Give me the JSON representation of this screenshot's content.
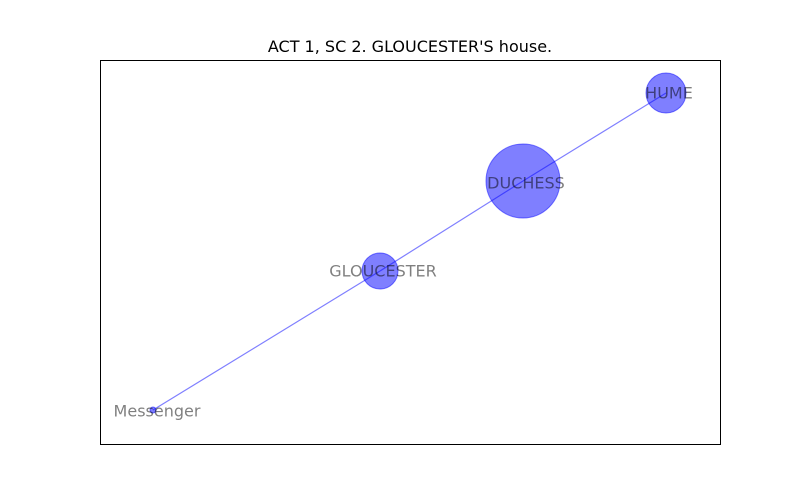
{
  "title": "ACT 1, SC 2. GLOUCESTER'S house.",
  "colors": {
    "node_fill": "#0000ff",
    "edge": "#0000ff",
    "label": "#000000",
    "frame": "#000000"
  },
  "graph": {
    "nodes": [
      {
        "id": "Messenger",
        "label": "Messenger",
        "size": 1
      },
      {
        "id": "GLOUCESTER",
        "label": "GLOUCESTER",
        "size": 4
      },
      {
        "id": "DUCHESS",
        "label": "DUCHESS",
        "size": 16
      },
      {
        "id": "HUME",
        "label": "HUME",
        "size": 5
      }
    ],
    "edges": [
      {
        "source": "Messenger",
        "target": "GLOUCESTER"
      },
      {
        "source": "GLOUCESTER",
        "target": "DUCHESS"
      },
      {
        "source": "DUCHESS",
        "target": "HUME"
      }
    ]
  }
}
